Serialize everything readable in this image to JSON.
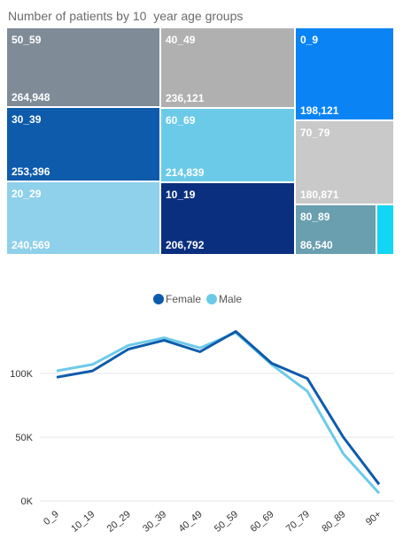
{
  "chart_data": [
    {
      "type": "treemap",
      "title": "Number of patients by 10  year age groups",
      "tiles": [
        {
          "label": "50_59",
          "value": 264948,
          "value_label": "264,948",
          "color": "#7f8c98"
        },
        {
          "label": "30_39",
          "value": 253396,
          "value_label": "253,396",
          "color": "#0e5bab"
        },
        {
          "label": "20_29",
          "value": 240569,
          "value_label": "240,569",
          "color": "#8fd0ea"
        },
        {
          "label": "40_49",
          "value": 236121,
          "value_label": "236,121",
          "color": "#b0b0b0"
        },
        {
          "label": "60_69",
          "value": 214839,
          "value_label": "214,839",
          "color": "#6ccae9"
        },
        {
          "label": "10_19",
          "value": 206792,
          "value_label": "206,792",
          "color": "#0b2f7f"
        },
        {
          "label": "0_9",
          "value": 198121,
          "value_label": "198,121",
          "color": "#0a84f5"
        },
        {
          "label": "70_79",
          "value": 180871,
          "value_label": "180,871",
          "color": "#c9c9c9"
        },
        {
          "label": "80_89",
          "value": 86540,
          "value_label": "86,540",
          "color": "#6a9fb0"
        },
        {
          "label": "",
          "value": 15000,
          "value_label": "",
          "color": "#11d6f5"
        }
      ]
    },
    {
      "type": "line",
      "categories": [
        "0_9",
        "10_19",
        "20_29",
        "30_39",
        "40_49",
        "50_59",
        "60_69",
        "70_79",
        "80_89",
        "90+"
      ],
      "series": [
        {
          "name": "Female",
          "color": "#0e5bab",
          "values": [
            97000,
            102000,
            119000,
            126000,
            117000,
            133000,
            108000,
            96000,
            50000,
            13000
          ]
        },
        {
          "name": "Male",
          "color": "#6ccae9",
          "values": [
            102000,
            107000,
            122000,
            128000,
            120000,
            132000,
            107000,
            86000,
            37000,
            6000
          ]
        }
      ],
      "yticks": [
        "0K",
        "50K",
        "100K"
      ],
      "ytick_values": [
        0,
        50000,
        100000
      ],
      "ylim": [
        0,
        140000
      ],
      "legend_position": "top-center",
      "grid": true
    }
  ]
}
